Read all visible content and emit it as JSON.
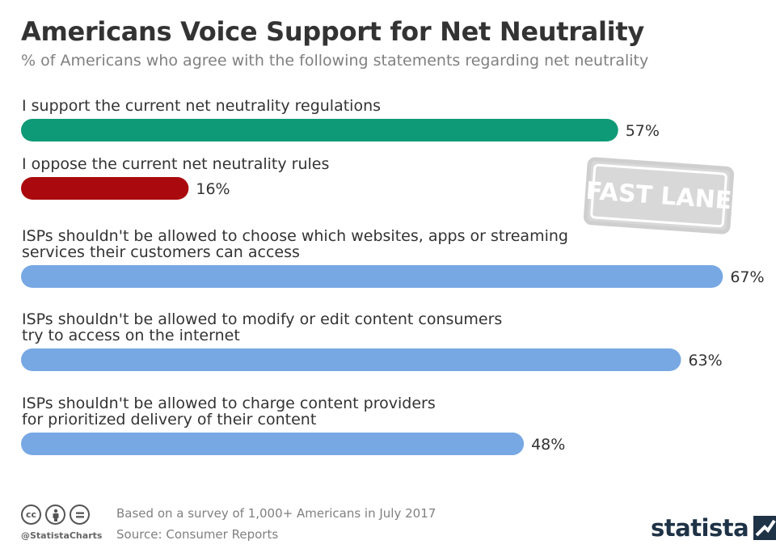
{
  "title": "Americans Voice Support for Net Neutrality",
  "subtitle": "% of Americans who agree with the following statements regarding net neutrality",
  "stamp_text": "FAST LANE",
  "footer": {
    "handle": "@StatistaCharts",
    "note": "Based on a survey of 1,000+ Americans in July 2017",
    "source": "Source: Consumer Reports",
    "brand": "statista",
    "icons": [
      "cc-icon",
      "attribution-icon",
      "no-derivatives-icon"
    ]
  },
  "colors": {
    "support": "#0f9a77",
    "oppose": "#aa0a0e",
    "neutral": "#77a8e3"
  },
  "chart_data": {
    "type": "bar",
    "orientation": "horizontal",
    "title": "Americans Voice Support for Net Neutrality",
    "xlabel": "",
    "ylabel": "",
    "xlim": [
      0,
      70
    ],
    "grid": false,
    "categories": [
      [
        "I support the current net neutrality regulations"
      ],
      [
        "I oppose the current net neutrality rules"
      ],
      [
        "ISPs shouldn't be allowed to choose which websites, apps or streaming",
        "services their customers can access"
      ],
      [
        "ISPs shouldn't be allowed to modify or edit content consumers",
        "try to access on the internet"
      ],
      [
        "ISPs shouldn't be allowed to charge content providers",
        "for prioritized delivery of their content"
      ]
    ],
    "values": [
      57,
      16,
      67,
      63,
      48
    ],
    "value_labels": [
      "57%",
      "16%",
      "67%",
      "63%",
      "48%"
    ],
    "bar_colors": [
      "#0f9a77",
      "#aa0a0e",
      "#77a8e3",
      "#77a8e3",
      "#77a8e3"
    ]
  }
}
